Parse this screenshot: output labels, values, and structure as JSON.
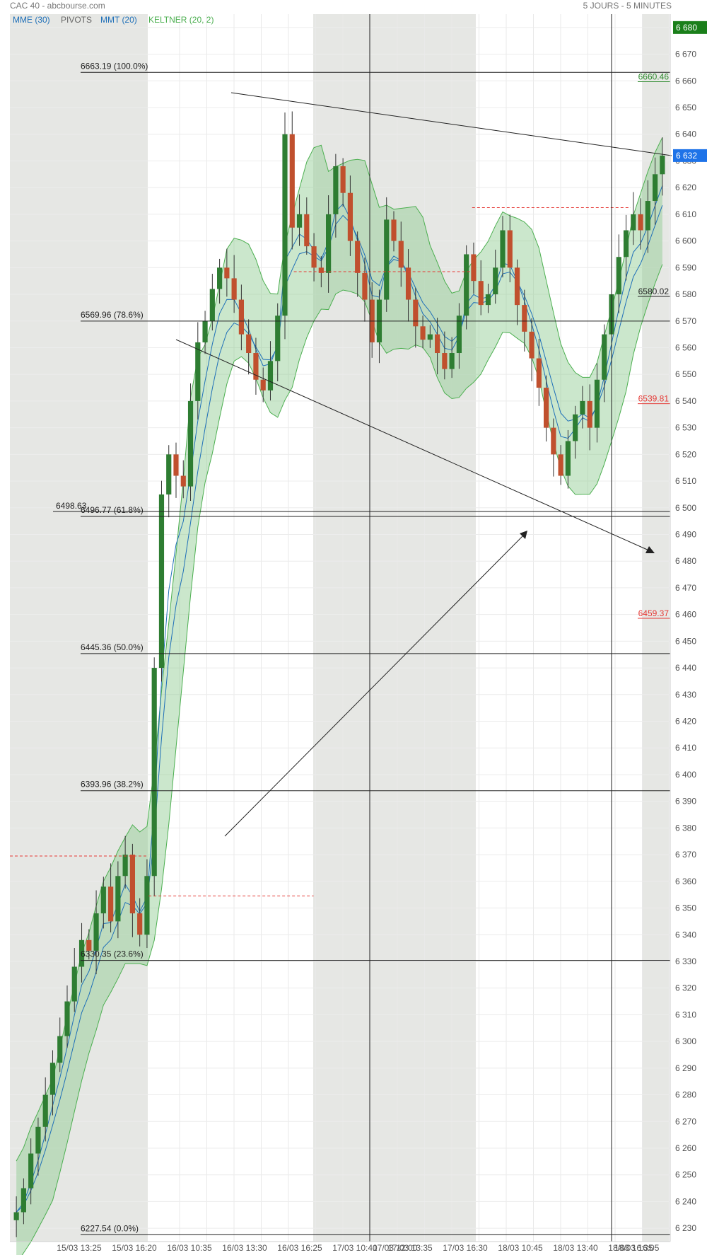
{
  "header": {
    "title": "CAC 40 - abcbourse.com",
    "period": "5 JOURS - 5 MINUTES"
  },
  "indicators": [
    {
      "label": "MME (30)",
      "color": "#1e6fb8"
    },
    {
      "label": "PIVOTS",
      "color": "#666666"
    },
    {
      "label": "MMT (20)",
      "color": "#1e6fb8"
    },
    {
      "label": "KELTNER (20, 2)",
      "color": "#4caf50"
    }
  ],
  "colors": {
    "up_candle": "#2e7d32",
    "down_candle": "#c0502e",
    "keltner_band": "#4caf50",
    "keltner_fill": "#8bc98d",
    "mm_line": "#1e6fb8",
    "pivot_line": "#e53935",
    "session_shade": "#e6e7e4",
    "price_badge": "#1e73e8",
    "top_badge": "#1a7f1a"
  },
  "chart_data": {
    "type": "candlestick",
    "ylim": [
      6225,
      6685
    ],
    "y_ticks": [
      "6 680",
      "6 670",
      "6 660",
      "6 650",
      "6 640",
      "6 630",
      "6 620",
      "6 610",
      "6 600",
      "6 590",
      "6 580",
      "6 570",
      "6 560",
      "6 550",
      "6 540",
      "6 530",
      "6 520",
      "6 510",
      "6 500",
      "6 490",
      "6 480",
      "6 470",
      "6 460",
      "6 450",
      "6 440",
      "6 430",
      "6 420",
      "6 410",
      "6 400",
      "6 390",
      "6 380",
      "6 370",
      "6 360",
      "6 350",
      "6 340",
      "6 330",
      "6 320",
      "6 310",
      "6 300",
      "6 290",
      "6 280",
      "6 270",
      "6 260",
      "6 250",
      "6 240",
      "6 230"
    ],
    "x_ticks": [
      "15/03 13:25",
      "15/03 16:20",
      "16/03 10:35",
      "16/03 13:30",
      "16/03 16:25",
      "17/03 10:40",
      "17/03 13:35",
      "17/03 16:30",
      "18/03 10:45",
      "18/03 13:40",
      "18/03 16:35"
    ],
    "date_markers": [
      "17/03 12:00",
      "18/03 16:05"
    ],
    "last_price": {
      "label": "6 632",
      "value": 6632
    },
    "top_label": {
      "label": "6 680",
      "value": 6680
    },
    "fibonacci": [
      {
        "label": "6663.19  (100.0%)",
        "value": 6663.19
      },
      {
        "label": "6569.96  (78.6%)",
        "value": 6569.96
      },
      {
        "label": "6496.77  (61.8%)",
        "value": 6496.77
      },
      {
        "label": "6445.36  (50.0%)",
        "value": 6445.36
      },
      {
        "label": "6393.96  (38.2%)",
        "value": 6393.96
      },
      {
        "label": "6330.35  (23.6%)",
        "value": 6330.35
      },
      {
        "label": "6227.54  (0.0%)",
        "value": 6227.54
      }
    ],
    "horizontal_lines": [
      {
        "label": "6498.63",
        "value": 6498.63
      }
    ],
    "right_levels": [
      {
        "label": "6660.46",
        "value": 6660.46,
        "color": "#2e8b2e"
      },
      {
        "label": "6580.02",
        "value": 6580.02,
        "color": "#222222"
      },
      {
        "label": "6539.81",
        "value": 6539.81,
        "color": "#e53935"
      },
      {
        "label": "6459.37",
        "value": 6459.37,
        "color": "#e53935"
      }
    ],
    "pivot_levels": [
      {
        "value": 6369.5,
        "from": 0.0,
        "to": 0.21
      },
      {
        "value": 6354.5,
        "from": 0.21,
        "to": 0.46
      },
      {
        "value": 6588.5,
        "from": 0.43,
        "to": 0.7
      },
      {
        "value": 6612.5,
        "from": 0.7,
        "to": 0.94
      }
    ],
    "closes": [
      6236,
      6245,
      6258,
      6268,
      6280,
      6292,
      6302,
      6315,
      6328,
      6338,
      6334,
      6348,
      6358,
      6345,
      6362,
      6370,
      6348,
      6340,
      6362,
      6440,
      6505,
      6520,
      6512,
      6508,
      6540,
      6562,
      6570,
      6582,
      6590,
      6586,
      6578,
      6565,
      6558,
      6548,
      6544,
      6555,
      6572,
      6640,
      6605,
      6610,
      6598,
      6590,
      6588,
      6610,
      6628,
      6618,
      6600,
      6588,
      6578,
      6562,
      6578,
      6608,
      6600,
      6590,
      6578,
      6568,
      6563,
      6565,
      6558,
      6552,
      6558,
      6572,
      6595,
      6585,
      6576,
      6580,
      6590,
      6604,
      6590,
      6576,
      6566,
      6556,
      6545,
      6530,
      6520,
      6512,
      6525,
      6535,
      6540,
      6530,
      6548,
      6565,
      6580,
      6594,
      6604,
      6610,
      6604,
      6615,
      6625,
      6632
    ]
  }
}
